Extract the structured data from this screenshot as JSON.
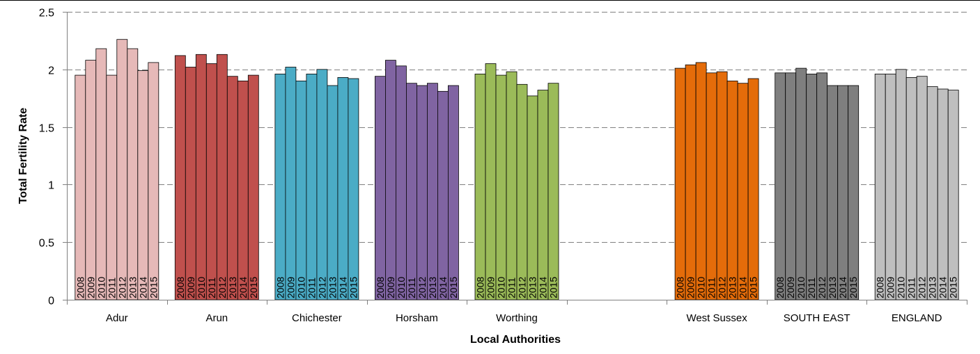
{
  "chart_data": {
    "type": "bar",
    "title": "",
    "xlabel": "Local Authorities",
    "ylabel": "Total Fertility Rate",
    "ylim": [
      0,
      2.5
    ],
    "yticks": [
      "0",
      "0.5",
      "1",
      "1.5",
      "2",
      "2.5"
    ],
    "grid": true,
    "legend": "none",
    "years": [
      "2008",
      "2009",
      "2010",
      "2011",
      "2012",
      "2013",
      "2014",
      "2015"
    ],
    "groups": [
      {
        "name": "Adur",
        "color": "#E6B9B8",
        "values": [
          1.95,
          2.08,
          2.18,
          1.95,
          2.26,
          2.18,
          1.99,
          2.06
        ]
      },
      {
        "name": "Arun",
        "color": "#C0504D",
        "values": [
          2.12,
          2.02,
          2.13,
          2.05,
          2.13,
          1.94,
          1.9,
          1.95
        ]
      },
      {
        "name": "Chichester",
        "color": "#4BACC6",
        "values": [
          1.96,
          2.02,
          1.9,
          1.96,
          2.0,
          1.86,
          1.93,
          1.92
        ]
      },
      {
        "name": "Horsham",
        "color": "#8064A2",
        "values": [
          1.94,
          2.08,
          2.03,
          1.88,
          1.86,
          1.88,
          1.81,
          1.86
        ]
      },
      {
        "name": "Worthing",
        "color": "#9BBB59",
        "values": [
          1.96,
          2.05,
          1.95,
          1.98,
          1.87,
          1.77,
          1.82,
          1.88
        ]
      },
      {
        "name": "",
        "color": "#FFFFFF",
        "values": []
      },
      {
        "name": "West Sussex",
        "color": "#E46C0A",
        "values": [
          2.01,
          2.04,
          2.06,
          1.97,
          1.98,
          1.9,
          1.88,
          1.92
        ]
      },
      {
        "name": "SOUTH EAST",
        "color": "#7F7F7F",
        "values": [
          1.97,
          1.97,
          2.01,
          1.96,
          1.97,
          1.86,
          1.86,
          1.86
        ]
      },
      {
        "name": "ENGLAND",
        "color": "#BFBFBF",
        "values": [
          1.96,
          1.96,
          2.0,
          1.93,
          1.94,
          1.85,
          1.83,
          1.82
        ]
      }
    ]
  }
}
